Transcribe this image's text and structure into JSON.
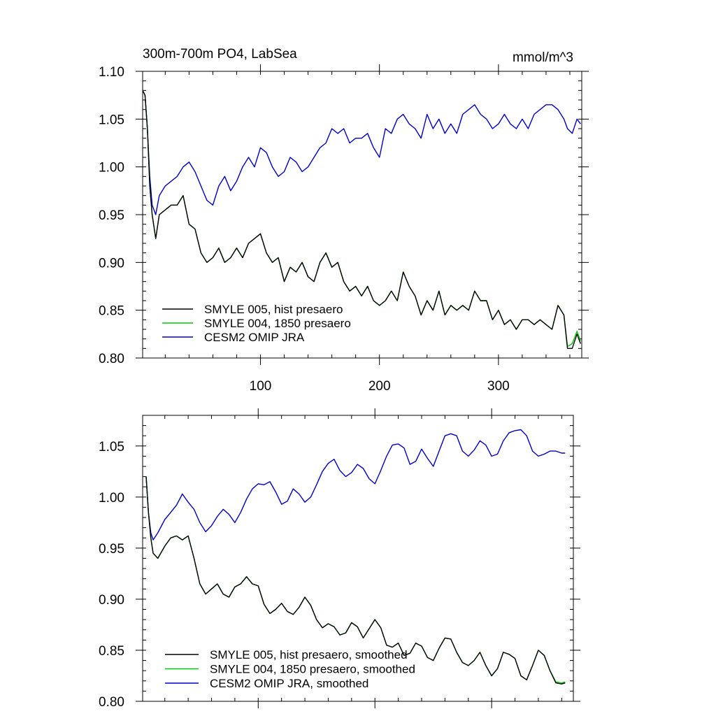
{
  "chart_data": [
    {
      "type": "line",
      "title": "300m-700m PO4, LabSea",
      "units": "mmol/m^3",
      "xlabel": "",
      "ylabel": "",
      "xlim": [
        1,
        370
      ],
      "ylim": [
        0.8,
        1.1
      ],
      "xticks": [
        100,
        200,
        300
      ],
      "xtick_labels": [
        "100",
        "200",
        "300"
      ],
      "yticks": [
        0.8,
        0.85,
        0.9,
        0.95,
        1.0,
        1.05,
        1.1
      ],
      "ytick_labels": [
        "0.80",
        "0.85",
        "0.90",
        "0.95",
        "1.00",
        "1.05",
        "1.10"
      ],
      "legend_position": "bottom-left",
      "series": [
        {
          "name": "SMYLE 005, hist presaero",
          "color": "#000000",
          "x": [
            1,
            3,
            5,
            7,
            9,
            12,
            15,
            20,
            25,
            30,
            35,
            40,
            45,
            50,
            55,
            60,
            65,
            70,
            75,
            80,
            85,
            90,
            95,
            100,
            105,
            110,
            115,
            120,
            125,
            130,
            135,
            140,
            145,
            150,
            155,
            160,
            165,
            170,
            175,
            180,
            185,
            190,
            195,
            200,
            205,
            210,
            215,
            220,
            225,
            230,
            235,
            240,
            245,
            250,
            255,
            260,
            265,
            270,
            275,
            280,
            285,
            290,
            295,
            300,
            305,
            310,
            315,
            320,
            325,
            330,
            335,
            340,
            345,
            350,
            355,
            358,
            362,
            366,
            369
          ],
          "values": [
            1.08,
            1.075,
            1.04,
            0.98,
            0.95,
            0.925,
            0.95,
            0.955,
            0.96,
            0.96,
            0.97,
            0.94,
            0.935,
            0.91,
            0.9,
            0.905,
            0.915,
            0.9,
            0.905,
            0.915,
            0.905,
            0.92,
            0.925,
            0.93,
            0.91,
            0.9,
            0.905,
            0.88,
            0.895,
            0.89,
            0.9,
            0.885,
            0.88,
            0.9,
            0.91,
            0.895,
            0.9,
            0.88,
            0.87,
            0.875,
            0.865,
            0.875,
            0.86,
            0.855,
            0.86,
            0.87,
            0.86,
            0.89,
            0.875,
            0.865,
            0.845,
            0.86,
            0.85,
            0.87,
            0.845,
            0.855,
            0.85,
            0.855,
            0.85,
            0.87,
            0.86,
            0.86,
            0.84,
            0.85,
            0.835,
            0.84,
            0.83,
            0.84,
            0.84,
            0.835,
            0.84,
            0.835,
            0.83,
            0.855,
            0.845,
            0.81,
            0.81,
            0.825,
            0.815
          ]
        },
        {
          "name": "SMYLE 004, 1850 presaero",
          "color": "#00cc00",
          "x": [
            1,
            3,
            5,
            7,
            9,
            12,
            15,
            20,
            25,
            30,
            35,
            40,
            45,
            50,
            55,
            60,
            65,
            70,
            75,
            80,
            85,
            90,
            95,
            100,
            105,
            110,
            115,
            120,
            125,
            130,
            135,
            140,
            145,
            150,
            155,
            160,
            165,
            170,
            175,
            180,
            185,
            190,
            195,
            200,
            205,
            210,
            215,
            220,
            225,
            230,
            235,
            240,
            245,
            250,
            255,
            260,
            265,
            270,
            275,
            280,
            285,
            290,
            295,
            300,
            305,
            310,
            315,
            320,
            325,
            330,
            335,
            340,
            345,
            350,
            355,
            358,
            362,
            366,
            369
          ],
          "values": [
            1.08,
            1.075,
            1.04,
            0.98,
            0.95,
            0.925,
            0.95,
            0.955,
            0.96,
            0.96,
            0.97,
            0.94,
            0.935,
            0.91,
            0.9,
            0.905,
            0.915,
            0.9,
            0.905,
            0.915,
            0.905,
            0.92,
            0.925,
            0.93,
            0.91,
            0.9,
            0.905,
            0.88,
            0.895,
            0.89,
            0.9,
            0.885,
            0.88,
            0.9,
            0.91,
            0.895,
            0.9,
            0.88,
            0.87,
            0.875,
            0.865,
            0.875,
            0.86,
            0.855,
            0.86,
            0.87,
            0.86,
            0.89,
            0.875,
            0.865,
            0.845,
            0.86,
            0.85,
            0.87,
            0.845,
            0.855,
            0.85,
            0.855,
            0.85,
            0.87,
            0.86,
            0.86,
            0.84,
            0.85,
            0.835,
            0.84,
            0.83,
            0.84,
            0.84,
            0.835,
            0.84,
            0.835,
            0.83,
            0.855,
            0.845,
            0.812,
            0.815,
            0.828,
            0.818
          ]
        },
        {
          "name": "CESM2 OMIP JRA",
          "color": "#0000cc",
          "x": [
            1,
            3,
            5,
            7,
            9,
            12,
            15,
            20,
            25,
            30,
            35,
            40,
            45,
            50,
            55,
            60,
            65,
            70,
            75,
            80,
            85,
            90,
            95,
            100,
            105,
            110,
            115,
            120,
            125,
            130,
            135,
            140,
            145,
            150,
            155,
            160,
            165,
            170,
            175,
            180,
            185,
            190,
            195,
            200,
            205,
            210,
            215,
            220,
            225,
            230,
            235,
            240,
            245,
            250,
            255,
            260,
            265,
            270,
            275,
            280,
            285,
            290,
            295,
            300,
            305,
            310,
            315,
            320,
            325,
            330,
            335,
            340,
            345,
            350,
            355,
            358,
            362,
            366,
            369
          ],
          "values": [
            1.08,
            1.075,
            1.04,
            0.99,
            0.96,
            0.95,
            0.97,
            0.98,
            0.985,
            0.99,
            1.0,
            1.005,
            0.995,
            0.98,
            0.965,
            0.96,
            0.98,
            0.99,
            0.975,
            0.985,
            1.0,
            1.01,
            1.0,
            1.02,
            1.015,
            1.0,
            0.99,
            0.995,
            1.01,
            1.005,
            0.995,
            1.0,
            1.01,
            1.02,
            1.025,
            1.04,
            1.035,
            1.04,
            1.025,
            1.03,
            1.03,
            1.035,
            1.02,
            1.01,
            1.04,
            1.035,
            1.05,
            1.055,
            1.045,
            1.04,
            1.03,
            1.055,
            1.04,
            1.05,
            1.035,
            1.045,
            1.035,
            1.055,
            1.06,
            1.065,
            1.055,
            1.05,
            1.04,
            1.045,
            1.055,
            1.045,
            1.04,
            1.05,
            1.04,
            1.055,
            1.06,
            1.065,
            1.065,
            1.06,
            1.05,
            1.04,
            1.035,
            1.05,
            1.045
          ]
        }
      ]
    },
    {
      "type": "line",
      "title": "",
      "xlabel": "",
      "ylabel": "",
      "xlim": [
        1,
        370
      ],
      "ylim": [
        0.8,
        1.08
      ],
      "xticks": [
        100,
        200,
        300
      ],
      "xtick_labels": [],
      "yticks": [
        0.8,
        0.85,
        0.9,
        0.95,
        1.0,
        1.05
      ],
      "ytick_labels": [
        "0.80",
        "0.85",
        "0.90",
        "0.95",
        "1.00",
        "1.05"
      ],
      "legend_position": "bottom-left",
      "series": [
        {
          "name": "SMYLE 005, hist presaero, smoothed",
          "color": "#000000",
          "x": [
            4,
            6,
            8,
            10,
            14,
            20,
            25,
            30,
            35,
            40,
            45,
            50,
            55,
            60,
            65,
            70,
            75,
            80,
            85,
            90,
            95,
            100,
            105,
            110,
            115,
            120,
            125,
            130,
            135,
            140,
            145,
            150,
            155,
            160,
            165,
            170,
            175,
            180,
            185,
            190,
            195,
            200,
            205,
            210,
            215,
            220,
            225,
            230,
            235,
            240,
            245,
            250,
            255,
            260,
            265,
            270,
            275,
            280,
            285,
            290,
            295,
            300,
            305,
            310,
            315,
            320,
            325,
            330,
            335,
            340,
            345,
            350,
            355,
            360,
            363
          ],
          "values": [
            1.02,
            0.985,
            0.96,
            0.945,
            0.94,
            0.952,
            0.96,
            0.962,
            0.958,
            0.962,
            0.94,
            0.915,
            0.905,
            0.91,
            0.915,
            0.905,
            0.902,
            0.912,
            0.915,
            0.922,
            0.915,
            0.913,
            0.895,
            0.886,
            0.89,
            0.896,
            0.888,
            0.885,
            0.892,
            0.902,
            0.894,
            0.88,
            0.872,
            0.876,
            0.873,
            0.865,
            0.867,
            0.877,
            0.873,
            0.862,
            0.871,
            0.88,
            0.872,
            0.855,
            0.853,
            0.857,
            0.845,
            0.847,
            0.857,
            0.854,
            0.843,
            0.84,
            0.852,
            0.862,
            0.861,
            0.848,
            0.838,
            0.835,
            0.84,
            0.848,
            0.835,
            0.825,
            0.832,
            0.848,
            0.846,
            0.842,
            0.825,
            0.821,
            0.835,
            0.85,
            0.845,
            0.83,
            0.818,
            0.817,
            0.818
          ]
        },
        {
          "name": "SMYLE 004, 1850 presaero, smoothed",
          "color": "#00cc00",
          "x": [
            4,
            6,
            8,
            10,
            14,
            20,
            25,
            30,
            35,
            40,
            45,
            50,
            55,
            60,
            65,
            70,
            75,
            80,
            85,
            90,
            95,
            100,
            105,
            110,
            115,
            120,
            125,
            130,
            135,
            140,
            145,
            150,
            155,
            160,
            165,
            170,
            175,
            180,
            185,
            190,
            195,
            200,
            205,
            210,
            215,
            220,
            225,
            230,
            235,
            240,
            245,
            250,
            255,
            260,
            265,
            270,
            275,
            280,
            285,
            290,
            295,
            300,
            305,
            310,
            315,
            320,
            325,
            330,
            335,
            340,
            345,
            350,
            355,
            360,
            363
          ],
          "values": [
            1.02,
            0.985,
            0.96,
            0.945,
            0.94,
            0.952,
            0.96,
            0.962,
            0.958,
            0.962,
            0.94,
            0.915,
            0.905,
            0.91,
            0.915,
            0.905,
            0.902,
            0.912,
            0.915,
            0.922,
            0.915,
            0.913,
            0.895,
            0.886,
            0.89,
            0.896,
            0.888,
            0.885,
            0.892,
            0.902,
            0.894,
            0.88,
            0.872,
            0.876,
            0.873,
            0.865,
            0.867,
            0.877,
            0.873,
            0.862,
            0.871,
            0.88,
            0.872,
            0.855,
            0.853,
            0.857,
            0.845,
            0.847,
            0.857,
            0.854,
            0.843,
            0.84,
            0.852,
            0.862,
            0.861,
            0.848,
            0.838,
            0.835,
            0.84,
            0.848,
            0.835,
            0.825,
            0.832,
            0.848,
            0.846,
            0.842,
            0.825,
            0.821,
            0.835,
            0.85,
            0.845,
            0.83,
            0.819,
            0.818,
            0.819
          ]
        },
        {
          "name": "CESM2 OMIP JRA, smoothed",
          "color": "#0000cc",
          "x": [
            4,
            6,
            8,
            10,
            14,
            20,
            25,
            30,
            35,
            40,
            45,
            50,
            55,
            60,
            65,
            70,
            75,
            80,
            85,
            90,
            95,
            100,
            105,
            110,
            115,
            120,
            125,
            130,
            135,
            140,
            145,
            150,
            155,
            160,
            165,
            170,
            175,
            180,
            185,
            190,
            195,
            200,
            205,
            210,
            215,
            220,
            225,
            230,
            235,
            240,
            245,
            250,
            255,
            260,
            265,
            270,
            275,
            280,
            285,
            290,
            295,
            300,
            305,
            310,
            315,
            320,
            325,
            330,
            335,
            340,
            345,
            350,
            355,
            360,
            363
          ],
          "values": [
            1.02,
            0.985,
            0.965,
            0.958,
            0.965,
            0.978,
            0.985,
            0.992,
            1.003,
            0.995,
            0.988,
            0.975,
            0.966,
            0.972,
            0.981,
            0.988,
            0.983,
            0.975,
            0.985,
            0.998,
            1.008,
            1.013,
            1.012,
            1.015,
            1.005,
            0.993,
            0.996,
            1.008,
            1.003,
            0.995,
            1.0,
            1.012,
            1.025,
            1.033,
            1.037,
            1.026,
            1.02,
            1.024,
            1.032,
            1.028,
            1.018,
            1.013,
            1.026,
            1.04,
            1.051,
            1.052,
            1.048,
            1.032,
            1.035,
            1.047,
            1.038,
            1.03,
            1.045,
            1.06,
            1.062,
            1.06,
            1.045,
            1.04,
            1.046,
            1.055,
            1.051,
            1.04,
            1.042,
            1.055,
            1.063,
            1.065,
            1.066,
            1.06,
            1.045,
            1.04,
            1.042,
            1.045,
            1.045,
            1.043,
            1.043
          ]
        }
      ]
    }
  ]
}
